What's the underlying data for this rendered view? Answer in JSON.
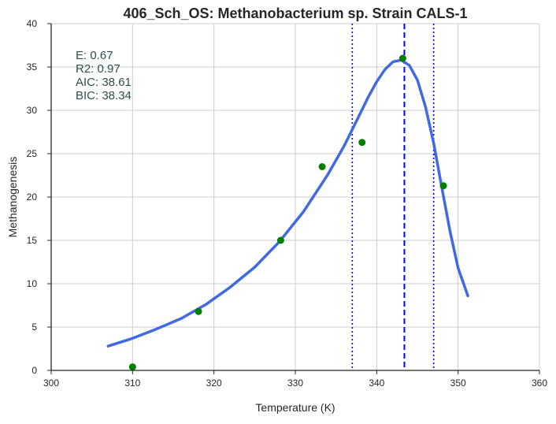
{
  "chart_data": {
    "type": "scatter",
    "title": "406_Sch_OS: Methanobacterium sp. Strain CALS-1",
    "xlabel": "Temperature (K)",
    "ylabel": "Methanogenesis",
    "xlim": [
      300,
      360
    ],
    "ylim": [
      0,
      40
    ],
    "x_ticks": [
      300,
      310,
      320,
      330,
      340,
      350,
      360
    ],
    "y_ticks": [
      0,
      5,
      10,
      15,
      20,
      25,
      30,
      35,
      40
    ],
    "grid": true,
    "colors": {
      "points": "#007f00",
      "fit": "#4169e1",
      "vlines": "#0000ff",
      "annotation": "#2f4f4f",
      "grid": "#cccccc",
      "axis": "#262626"
    },
    "series": [
      {
        "type": "scatter",
        "x": [
          310.0,
          318.1,
          328.2,
          333.3,
          338.2,
          343.2,
          348.2
        ],
        "y": [
          0.4,
          6.8,
          15.0,
          23.5,
          26.3,
          36.0,
          21.3
        ]
      },
      {
        "type": "line",
        "x": [
          307,
          310,
          313,
          316,
          319,
          322,
          325,
          328,
          331,
          334,
          336,
          338,
          339,
          340,
          341,
          342,
          343,
          344,
          345,
          346,
          347,
          348,
          349,
          350,
          351.2
        ],
        "y": [
          2.8,
          3.7,
          4.8,
          6.0,
          7.6,
          9.6,
          11.9,
          14.8,
          18.3,
          22.6,
          25.9,
          29.7,
          31.6,
          33.3,
          34.7,
          35.6,
          35.8,
          35.2,
          33.5,
          30.4,
          26.2,
          21.1,
          16.1,
          11.8,
          8.6
        ]
      }
    ],
    "vlines": [
      {
        "x": 337.0,
        "style": "dotted"
      },
      {
        "x": 343.4,
        "style": "dashed"
      },
      {
        "x": 347.0,
        "style": "dotted"
      }
    ],
    "annotation_lines": [
      "E:  0.67",
      "R2:  0.97",
      "AIC: 38.61",
      "BIC: 38.34"
    ]
  }
}
